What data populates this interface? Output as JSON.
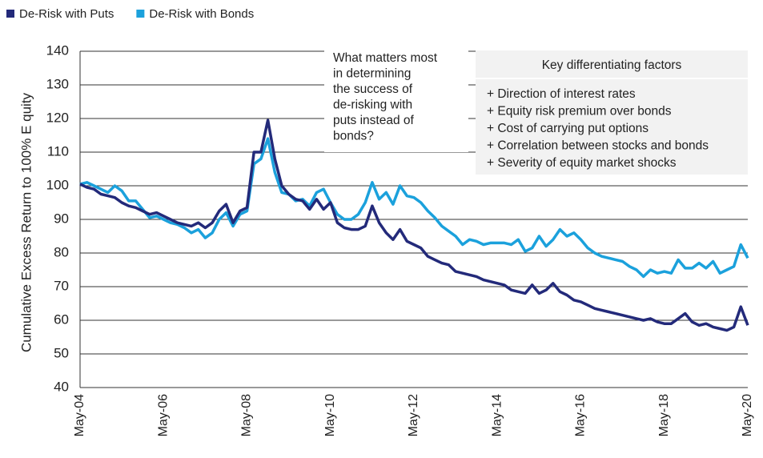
{
  "chart_data": {
    "type": "line",
    "y_label": "Cumulative Excess Return to 100% E quity",
    "categories": [
      "May-04",
      null,
      null,
      null,
      null,
      null,
      null,
      null,
      null,
      null,
      null,
      null,
      "May-06",
      null,
      null,
      null,
      null,
      null,
      null,
      null,
      null,
      null,
      null,
      null,
      "May-08",
      null,
      null,
      null,
      null,
      null,
      null,
      null,
      null,
      null,
      null,
      null,
      "May-10",
      null,
      null,
      null,
      null,
      null,
      null,
      null,
      null,
      null,
      null,
      null,
      "May-12",
      null,
      null,
      null,
      null,
      null,
      null,
      null,
      null,
      null,
      null,
      null,
      "May-14",
      null,
      null,
      null,
      null,
      null,
      null,
      null,
      null,
      null,
      null,
      null,
      "May-16",
      null,
      null,
      null,
      null,
      null,
      null,
      null,
      null,
      null,
      null,
      null,
      "May-18",
      null,
      null,
      null,
      null,
      null,
      null,
      null,
      null,
      null,
      null,
      null,
      "May-20"
    ],
    "series": [
      {
        "name": "De-Risk with Puts",
        "color": "#232a7a",
        "values": [
          100.5,
          99.5,
          99,
          97.5,
          97,
          96.5,
          95,
          94,
          93.5,
          92.5,
          91.5,
          92,
          91,
          90,
          89,
          88.5,
          88,
          89,
          87.5,
          89,
          92.5,
          94.5,
          89,
          92.5,
          93.5,
          110,
          110,
          119.5,
          108,
          100,
          97.5,
          96,
          95.5,
          93,
          96,
          93,
          95,
          89,
          87.5,
          87,
          87,
          88,
          94,
          89,
          86,
          84,
          87,
          83.5,
          82.5,
          81.5,
          79,
          78,
          77,
          76.5,
          74.5,
          74,
          73.5,
          73,
          72,
          71.5,
          71,
          70.5,
          69,
          68.5,
          68,
          70.5,
          68,
          69,
          71,
          68.5,
          67.5,
          66,
          65.5,
          64.5,
          63.5,
          63,
          62.5,
          62,
          61.5,
          61,
          60.5,
          60,
          60.5,
          59.5,
          59,
          59,
          60.5,
          62,
          59.5,
          58.5,
          59,
          58,
          57.5,
          57,
          58,
          64,
          58.5
        ]
      },
      {
        "name": "De-Risk with Bonds",
        "color": "#1ba1dc",
        "values": [
          100.5,
          101,
          100,
          99,
          98,
          100,
          98.5,
          95.5,
          95.5,
          93,
          90.5,
          91,
          90,
          89,
          88.5,
          87.5,
          86,
          87,
          84.5,
          86,
          90,
          92,
          88,
          91.5,
          92.5,
          106.5,
          108,
          114,
          104,
          98,
          97.5,
          95.5,
          96,
          94,
          98,
          99,
          95,
          91.5,
          90,
          90,
          91.5,
          95,
          101,
          96,
          98,
          94.5,
          100,
          97,
          96.5,
          95,
          92.5,
          90.5,
          88,
          86.5,
          85,
          82.5,
          84,
          83.5,
          82.5,
          83,
          83,
          83,
          82.5,
          84,
          80.5,
          81.5,
          85,
          82,
          84,
          87,
          85,
          86,
          84,
          81.5,
          80,
          79,
          78.5,
          78,
          77.5,
          76,
          75,
          73,
          75,
          74,
          74.5,
          74,
          78,
          75.5,
          75.5,
          77,
          75.5,
          77.5,
          74,
          75,
          76,
          82.5,
          78.5
        ]
      }
    ],
    "ylim": [
      40,
      140
    ],
    "yticks": [
      40,
      50,
      60,
      70,
      80,
      90,
      100,
      110,
      120,
      130,
      140
    ],
    "grid": true,
    "annotation": [
      "What matters most",
      "in determining",
      "the success of",
      "de-risking with",
      "puts instead of",
      "bonds?"
    ],
    "key_factors": {
      "title": "Key differentiating factors",
      "items": [
        "+ Direction of interest rates",
        "+ Equity risk premium over bonds",
        "+ Cost of carrying put options",
        "+ Correlation between stocks and bonds",
        "+ Severity of equity market shocks"
      ]
    }
  }
}
